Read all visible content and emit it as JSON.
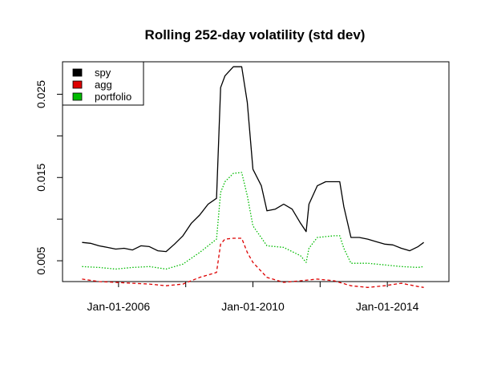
{
  "chart_data": {
    "type": "line",
    "title": "Rolling 252-day volatility (std dev)",
    "xlabel": "",
    "ylabel": "",
    "x_ticks": [
      "Jan-01-2006",
      "Jan-01-2010",
      "Jan-01-2014"
    ],
    "x_minor_ticks": [
      "Jan-01-2008",
      "Jan-01-2012"
    ],
    "y_ticks": [
      "0.005",
      "0.015",
      "0.025"
    ],
    "y_minor_ticks": [
      0.01,
      0.02
    ],
    "xlim": [
      "2004-05-01",
      "2015-11-01"
    ],
    "ylim": [
      0.0025,
      0.0289
    ],
    "grid": false,
    "legend_position": "top-left",
    "series": [
      {
        "name": "spy",
        "color": "#000000",
        "line_style": "solid",
        "points": [
          [
            "2004-12-01",
            0.0072
          ],
          [
            "2005-03-01",
            0.0071
          ],
          [
            "2005-06-01",
            0.0068
          ],
          [
            "2005-09-01",
            0.0066
          ],
          [
            "2005-12-01",
            0.0064
          ],
          [
            "2006-03-01",
            0.0065
          ],
          [
            "2006-06-01",
            0.0063
          ],
          [
            "2006-09-01",
            0.0068
          ],
          [
            "2006-12-01",
            0.0067
          ],
          [
            "2007-03-01",
            0.0062
          ],
          [
            "2007-06-01",
            0.0061
          ],
          [
            "2007-09-01",
            0.007
          ],
          [
            "2007-12-01",
            0.008
          ],
          [
            "2008-03-01",
            0.0095
          ],
          [
            "2008-06-01",
            0.0105
          ],
          [
            "2008-09-01",
            0.0118
          ],
          [
            "2008-12-01",
            0.0125
          ],
          [
            "2009-01-15",
            0.0258
          ],
          [
            "2009-03-01",
            0.0272
          ],
          [
            "2009-06-01",
            0.0283
          ],
          [
            "2009-09-01",
            0.0283
          ],
          [
            "2009-11-01",
            0.024
          ],
          [
            "2010-01-01",
            0.016
          ],
          [
            "2010-04-01",
            0.014
          ],
          [
            "2010-06-01",
            0.011
          ],
          [
            "2010-09-01",
            0.0112
          ],
          [
            "2010-12-01",
            0.0118
          ],
          [
            "2011-03-01",
            0.0112
          ],
          [
            "2011-06-01",
            0.0095
          ],
          [
            "2011-08-01",
            0.0085
          ],
          [
            "2011-09-01",
            0.0118
          ],
          [
            "2011-12-01",
            0.014
          ],
          [
            "2012-03-01",
            0.0145
          ],
          [
            "2012-06-01",
            0.0145
          ],
          [
            "2012-08-01",
            0.0145
          ],
          [
            "2012-09-15",
            0.0115
          ],
          [
            "2012-12-01",
            0.0078
          ],
          [
            "2013-03-01",
            0.0078
          ],
          [
            "2013-06-01",
            0.0076
          ],
          [
            "2013-09-01",
            0.0073
          ],
          [
            "2013-12-01",
            0.007
          ],
          [
            "2014-03-01",
            0.0069
          ],
          [
            "2014-06-01",
            0.0065
          ],
          [
            "2014-09-01",
            0.0062
          ],
          [
            "2014-12-01",
            0.0067
          ],
          [
            "2015-02-01",
            0.0072
          ]
        ]
      },
      {
        "name": "agg",
        "color": "#dd0000",
        "line_style": "dashed",
        "points": [
          [
            "2004-12-01",
            0.0028
          ],
          [
            "2005-06-01",
            0.0025
          ],
          [
            "2005-12-01",
            0.0024
          ],
          [
            "2006-06-01",
            0.0023
          ],
          [
            "2006-12-01",
            0.0022
          ],
          [
            "2007-06-01",
            0.002
          ],
          [
            "2007-12-01",
            0.0022
          ],
          [
            "2008-06-01",
            0.003
          ],
          [
            "2008-12-01",
            0.0036
          ],
          [
            "2009-01-15",
            0.007
          ],
          [
            "2009-03-01",
            0.0076
          ],
          [
            "2009-06-01",
            0.0077
          ],
          [
            "2009-09-01",
            0.0077
          ],
          [
            "2009-11-01",
            0.006
          ],
          [
            "2010-01-01",
            0.0048
          ],
          [
            "2010-06-01",
            0.003
          ],
          [
            "2010-12-01",
            0.0024
          ],
          [
            "2011-06-01",
            0.0026
          ],
          [
            "2011-12-01",
            0.0028
          ],
          [
            "2012-06-01",
            0.0026
          ],
          [
            "2012-12-01",
            0.002
          ],
          [
            "2013-06-01",
            0.0018
          ],
          [
            "2013-12-01",
            0.002
          ],
          [
            "2014-06-01",
            0.0023
          ],
          [
            "2014-12-01",
            0.0019
          ],
          [
            "2015-02-01",
            0.0018
          ]
        ]
      },
      {
        "name": "portfolio",
        "color": "#00bb00",
        "line_style": "dotted",
        "points": [
          [
            "2004-12-01",
            0.0043
          ],
          [
            "2005-06-01",
            0.0042
          ],
          [
            "2005-12-01",
            0.004
          ],
          [
            "2006-06-01",
            0.0042
          ],
          [
            "2006-12-01",
            0.0043
          ],
          [
            "2007-06-01",
            0.004
          ],
          [
            "2007-12-01",
            0.0046
          ],
          [
            "2008-06-01",
            0.006
          ],
          [
            "2008-12-01",
            0.0076
          ],
          [
            "2009-01-15",
            0.0132
          ],
          [
            "2009-03-01",
            0.0145
          ],
          [
            "2009-06-01",
            0.0155
          ],
          [
            "2009-09-01",
            0.0156
          ],
          [
            "2009-11-01",
            0.0128
          ],
          [
            "2010-01-01",
            0.0092
          ],
          [
            "2010-06-01",
            0.0068
          ],
          [
            "2010-12-01",
            0.0066
          ],
          [
            "2011-06-01",
            0.0056
          ],
          [
            "2011-08-01",
            0.0048
          ],
          [
            "2011-09-01",
            0.0065
          ],
          [
            "2011-12-01",
            0.0078
          ],
          [
            "2012-06-01",
            0.008
          ],
          [
            "2012-08-01",
            0.008
          ],
          [
            "2012-09-15",
            0.0065
          ],
          [
            "2012-12-01",
            0.0047
          ],
          [
            "2013-06-01",
            0.0047
          ],
          [
            "2013-12-01",
            0.0045
          ],
          [
            "2014-06-01",
            0.0043
          ],
          [
            "2014-12-01",
            0.0042
          ],
          [
            "2015-02-01",
            0.0043
          ]
        ]
      }
    ]
  }
}
